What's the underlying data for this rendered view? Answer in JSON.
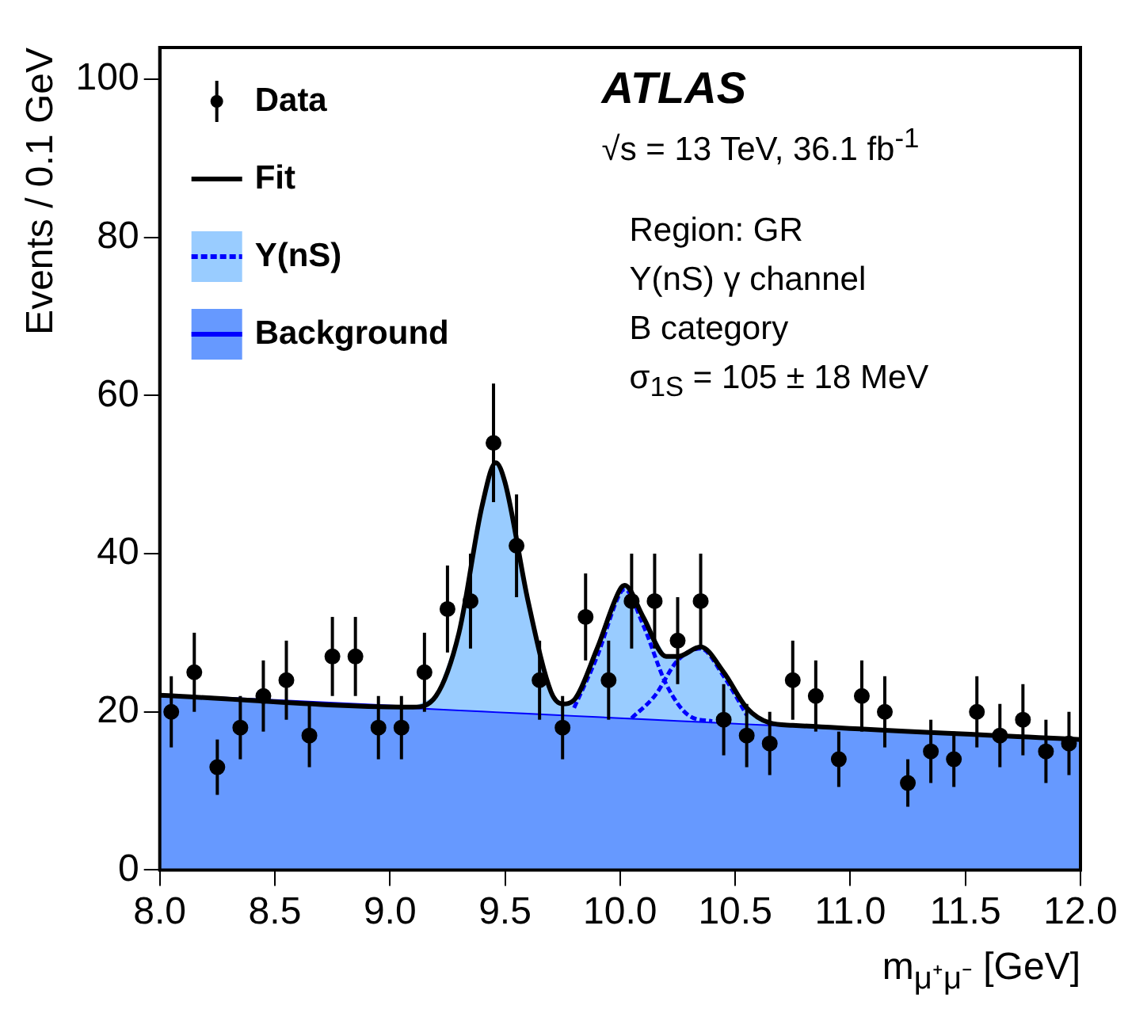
{
  "chart_data": {
    "type": "line",
    "xlabel": "m$_{μ⁺μ⁻}$ [GeV]",
    "ylabel": "Events / 0.1 GeV",
    "xlim": [
      8.0,
      12.0
    ],
    "xticks": [
      {
        "value": 8,
        "label": "8.0"
      },
      {
        "value": 8.5,
        "label": "8.5"
      },
      {
        "value": 9,
        "label": "9.0"
      },
      {
        "value": 9.5,
        "label": "9.5"
      },
      {
        "value": 10,
        "label": "10.0"
      },
      {
        "value": 10.5,
        "label": "10.5"
      },
      {
        "value": 11,
        "label": "11.0"
      },
      {
        "value": 11.5,
        "label": "11.5"
      },
      {
        "value": 12,
        "label": "12.0"
      }
    ],
    "ylim": [
      0,
      104
    ],
    "yticks": [
      0,
      20,
      40,
      60,
      80,
      100
    ],
    "grid": false,
    "legend": "top left",
    "annotations": [
      "ATLAS",
      "√s = 13 TeV, 36.1 fb$^{-1}$",
      "Region: GR",
      "Υ(nS) γ channel",
      "B category",
      "σ$_{1S}$ = 105 ± 18 MeV"
    ],
    "series": [
      {
        "name": "Data",
        "type": "scatter",
        "color": "#000000",
        "marker": "circle",
        "x": [
          8.05,
          8.15,
          8.25,
          8.35,
          8.45,
          8.55,
          8.65,
          8.75,
          8.85,
          8.95,
          9.05,
          9.15,
          9.25,
          9.35,
          9.45,
          9.55,
          9.65,
          9.75,
          9.85,
          9.95,
          10.05,
          10.15,
          10.25,
          10.35,
          10.45,
          10.55,
          10.65,
          10.75,
          10.85,
          10.95,
          11.05,
          11.15,
          11.25,
          11.35,
          11.45,
          11.55,
          11.65,
          11.75,
          11.85,
          11.95
        ],
        "values": [
          20,
          25,
          13,
          18,
          22,
          24,
          17,
          27,
          27,
          18,
          18,
          25,
          33,
          34,
          54,
          41,
          24,
          18,
          32,
          24,
          34,
          34,
          29,
          34,
          19,
          17,
          16,
          24,
          22,
          14,
          22,
          20,
          11,
          15,
          14,
          20,
          17,
          19,
          15,
          16
        ],
        "errors": [
          4.5,
          5,
          3.5,
          4,
          4.5,
          5,
          4,
          5,
          5,
          4,
          4,
          5,
          5.5,
          6,
          7.5,
          6.5,
          5,
          4,
          5.5,
          5,
          6,
          6,
          5.5,
          6,
          4.5,
          4,
          4,
          5,
          4.5,
          3.5,
          4.5,
          4.5,
          3,
          4,
          3.5,
          4.5,
          4,
          4.5,
          4,
          4
        ]
      },
      {
        "name": "Fit",
        "type": "line",
        "color": "#000000",
        "x": [
          8.0,
          9.1,
          9.2,
          9.3,
          9.4,
          9.46,
          9.5,
          9.6,
          9.7,
          9.75,
          9.8,
          9.9,
          10.0,
          10.02,
          10.1,
          10.2,
          10.25,
          10.35,
          10.45,
          10.55,
          10.65,
          10.75,
          12.0
        ],
        "values": [
          22.1,
          20.6,
          22,
          30,
          46,
          51.5,
          49,
          34,
          22.5,
          21,
          21.5,
          28,
          35.5,
          36,
          32,
          27,
          27,
          28.2,
          25,
          20.5,
          18.6,
          18.3,
          16.5
        ]
      },
      {
        "name": "Υ(nS)",
        "type": "area",
        "color": "#99ccff",
        "line_style": "dashed",
        "x": [
          9.1,
          9.2,
          9.3,
          9.4,
          9.46,
          9.5,
          9.6,
          9.7,
          9.75,
          9.8,
          9.9,
          10.0,
          10.02,
          10.1,
          10.2,
          10.25,
          10.35,
          10.45,
          10.55,
          10.65,
          10.75
        ],
        "values": [
          20.6,
          22,
          30,
          46,
          51.5,
          49,
          34,
          22.5,
          21,
          21.5,
          28,
          35.5,
          36,
          32,
          27,
          27,
          28.2,
          25,
          20.5,
          18.6,
          18.3
        ]
      },
      {
        "name": "Background",
        "type": "area",
        "color": "#6699ff",
        "x": [
          8.0,
          12.0
        ],
        "values": [
          22.1,
          16.5
        ]
      },
      {
        "type": "line",
        "color": "#0000ff",
        "line_style": "dashed",
        "x": [
          9.8,
          9.9,
          10.0,
          10.02,
          10.1,
          10.2,
          10.3,
          10.4
        ],
        "values": [
          20.5,
          27,
          35,
          35.5,
          31,
          23.5,
          19.5,
          18.8
        ]
      },
      {
        "type": "line",
        "color": "#0000ff",
        "line_style": "dashed",
        "x": [
          10.05,
          10.15,
          10.25,
          10.35,
          10.45,
          10.55
        ],
        "values": [
          19.2,
          22,
          26.5,
          28,
          24.5,
          19.6
        ]
      }
    ]
  }
}
